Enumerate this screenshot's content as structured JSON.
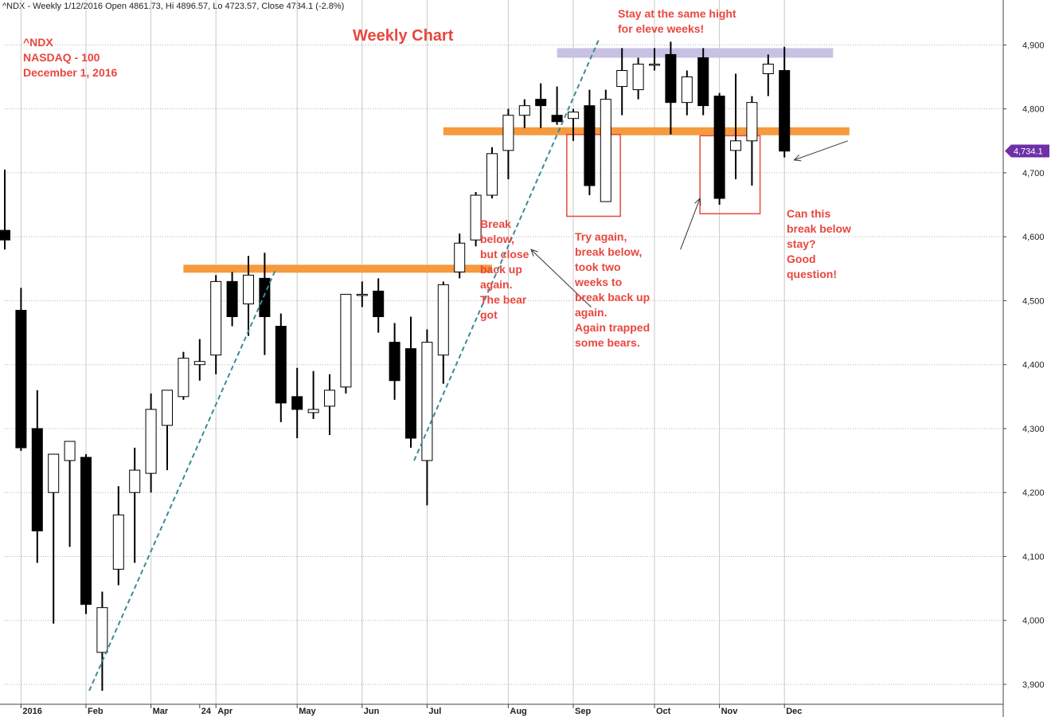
{
  "header": "^NDX - Weekly 1/12/2016 Open 4861.73, Hi 4896.57, Lo 4723.57, Close 4734.1 (-2.8%)",
  "colors": {
    "accent_red": "#e8473f",
    "support_orange": "#f59a3e",
    "resistance_lavender": "#c9c1e4",
    "trend_teal": "#3d8a94",
    "price_badge": "#6f2fa7",
    "bull": "#ffffff",
    "bear": "#000000"
  },
  "chart_data": {
    "type": "candlestick",
    "title": "Weekly Chart",
    "symbol_block": [
      "^NDX",
      "NASDAQ - 100",
      "December 1, 2016"
    ],
    "ylim": [
      3880,
      4960
    ],
    "yticks": [
      3900,
      4000,
      4100,
      4200,
      4300,
      4400,
      4500,
      4600,
      4700,
      4800,
      4900
    ],
    "ytick_labels": [
      "3,900",
      "4,000",
      "4,100",
      "4,200",
      "4,300",
      "4,400",
      "4,500",
      "4,600",
      "4,700",
      "4,800",
      "4,900"
    ],
    "last_price_label": "4,734.1",
    "last_price": 4734.1,
    "xlim": [
      0,
      64
    ],
    "months": [
      {
        "label": "2016",
        "x": 1
      },
      {
        "label": "Feb",
        "x": 5
      },
      {
        "label": "Mar",
        "x": 9
      },
      {
        "label": "24",
        "x": 12
      },
      {
        "label": "Apr",
        "x": 13
      },
      {
        "label": "May",
        "x": 18
      },
      {
        "label": "Jun",
        "x": 22
      },
      {
        "label": "Jul",
        "x": 26
      },
      {
        "label": "Aug",
        "x": 31
      },
      {
        "label": "Sep",
        "x": 35
      },
      {
        "label": "Oct",
        "x": 40
      },
      {
        "label": "Nov",
        "x": 44
      },
      {
        "label": "Dec",
        "x": 48
      }
    ],
    "candles": [
      {
        "x": 0,
        "o": 4610,
        "h": 4705,
        "l": 4580,
        "c": 4595
      },
      {
        "x": 1,
        "o": 4485,
        "h": 4520,
        "l": 4265,
        "c": 4270
      },
      {
        "x": 2,
        "o": 4300,
        "h": 4360,
        "l": 4090,
        "c": 4140
      },
      {
        "x": 3,
        "o": 4200,
        "h": 4260,
        "l": 3995,
        "c": 4260
      },
      {
        "x": 4,
        "o": 4250,
        "h": 4280,
        "l": 4115,
        "c": 4280
      },
      {
        "x": 5,
        "o": 4255,
        "h": 4260,
        "l": 4010,
        "c": 4025
      },
      {
        "x": 6,
        "o": 3950,
        "h": 4045,
        "l": 3890,
        "c": 4020
      },
      {
        "x": 7,
        "o": 4080,
        "h": 4210,
        "l": 4055,
        "c": 4165
      },
      {
        "x": 8,
        "o": 4200,
        "h": 4270,
        "l": 4090,
        "c": 4235
      },
      {
        "x": 9,
        "o": 4230,
        "h": 4355,
        "l": 4200,
        "c": 4330
      },
      {
        "x": 10,
        "o": 4305,
        "h": 4360,
        "l": 4235,
        "c": 4360
      },
      {
        "x": 11,
        "o": 4350,
        "h": 4420,
        "l": 4345,
        "c": 4410
      },
      {
        "x": 12,
        "o": 4400,
        "h": 4440,
        "l": 4375,
        "c": 4405
      },
      {
        "x": 13,
        "o": 4415,
        "h": 4540,
        "l": 4385,
        "c": 4530
      },
      {
        "x": 14,
        "o": 4530,
        "h": 4545,
        "l": 4460,
        "c": 4475
      },
      {
        "x": 15,
        "o": 4495,
        "h": 4570,
        "l": 4445,
        "c": 4540
      },
      {
        "x": 16,
        "o": 4535,
        "h": 4575,
        "l": 4415,
        "c": 4475
      },
      {
        "x": 17,
        "o": 4460,
        "h": 4480,
        "l": 4310,
        "c": 4340
      },
      {
        "x": 18,
        "o": 4350,
        "h": 4395,
        "l": 4285,
        "c": 4330
      },
      {
        "x": 19,
        "o": 4325,
        "h": 4390,
        "l": 4315,
        "c": 4330
      },
      {
        "x": 20,
        "o": 4335,
        "h": 4385,
        "l": 4290,
        "c": 4360
      },
      {
        "x": 21,
        "o": 4365,
        "h": 4510,
        "l": 4355,
        "c": 4510
      },
      {
        "x": 22,
        "o": 4510,
        "h": 4530,
        "l": 4490,
        "c": 4510
      },
      {
        "x": 23,
        "o": 4515,
        "h": 4535,
        "l": 4450,
        "c": 4475
      },
      {
        "x": 24,
        "o": 4435,
        "h": 4465,
        "l": 4345,
        "c": 4375
      },
      {
        "x": 25,
        "o": 4425,
        "h": 4475,
        "l": 4270,
        "c": 4285
      },
      {
        "x": 26,
        "o": 4250,
        "h": 4455,
        "l": 4180,
        "c": 4435
      },
      {
        "x": 27,
        "o": 4415,
        "h": 4530,
        "l": 4370,
        "c": 4525
      },
      {
        "x": 28,
        "o": 4545,
        "h": 4605,
        "l": 4535,
        "c": 4590
      },
      {
        "x": 29,
        "o": 4595,
        "h": 4670,
        "l": 4585,
        "c": 4665
      },
      {
        "x": 30,
        "o": 4665,
        "h": 4740,
        "l": 4660,
        "c": 4730
      },
      {
        "x": 31,
        "o": 4735,
        "h": 4800,
        "l": 4690,
        "c": 4790
      },
      {
        "x": 32,
        "o": 4790,
        "h": 4815,
        "l": 4770,
        "c": 4805
      },
      {
        "x": 33,
        "o": 4815,
        "h": 4840,
        "l": 4770,
        "c": 4805
      },
      {
        "x": 34,
        "o": 4790,
        "h": 4835,
        "l": 4775,
        "c": 4780
      },
      {
        "x": 35,
        "o": 4785,
        "h": 4800,
        "l": 4750,
        "c": 4795
      },
      {
        "x": 36,
        "o": 4805,
        "h": 4830,
        "l": 4665,
        "c": 4680
      },
      {
        "x": 37,
        "o": 4655,
        "h": 4830,
        "l": 4655,
        "c": 4815
      },
      {
        "x": 38,
        "o": 4835,
        "h": 4895,
        "l": 4790,
        "c": 4860
      },
      {
        "x": 39,
        "o": 4830,
        "h": 4880,
        "l": 4815,
        "c": 4870
      },
      {
        "x": 40,
        "o": 4870,
        "h": 4895,
        "l": 4860,
        "c": 4870
      },
      {
        "x": 41,
        "o": 4885,
        "h": 4905,
        "l": 4760,
        "c": 4810
      },
      {
        "x": 42,
        "o": 4810,
        "h": 4860,
        "l": 4790,
        "c": 4850
      },
      {
        "x": 43,
        "o": 4880,
        "h": 4895,
        "l": 4790,
        "c": 4805
      },
      {
        "x": 44,
        "o": 4820,
        "h": 4825,
        "l": 4650,
        "c": 4660
      },
      {
        "x": 45,
        "o": 4735,
        "h": 4855,
        "l": 4690,
        "c": 4750
      },
      {
        "x": 46,
        "o": 4750,
        "h": 4820,
        "l": 4680,
        "c": 4810
      },
      {
        "x": 47,
        "o": 4855,
        "h": 4885,
        "l": 4820,
        "c": 4870
      },
      {
        "x": 48,
        "o": 4860,
        "h": 4897,
        "l": 4724,
        "c": 4734
      }
    ],
    "support_lines": [
      {
        "name": "support-1",
        "y": 4550,
        "x0": 11,
        "x1": 30
      },
      {
        "name": "support-2",
        "y": 4765,
        "x0": 27,
        "x1": 52
      }
    ],
    "resistance_band": {
      "y0": 4880,
      "y1": 4895,
      "x0": 34,
      "x1": 51
    },
    "trend_lines": [
      {
        "x0": 5.2,
        "y0": 3890,
        "x1": 16.7,
        "y1": 4550
      },
      {
        "x0": 25.2,
        "y0": 4250,
        "x1": 36.6,
        "y1": 4910
      }
    ],
    "boxes": [
      {
        "x0": 34.6,
        "x1": 37.9,
        "y0": 4632,
        "y1": 4760
      },
      {
        "x0": 42.8,
        "x1": 46.5,
        "y0": 4636,
        "y1": 4758
      }
    ],
    "annotations": [
      {
        "name": "ann-stay",
        "lines": [
          "Stay at the same hight",
          "for eleve weeks!"
        ]
      },
      {
        "name": "ann-break1",
        "lines": [
          "Break",
          "below,",
          "but close",
          "back up",
          "again.",
          "The bear",
          "got"
        ]
      },
      {
        "name": "ann-try",
        "lines": [
          "Try again,",
          "break below,",
          "took two",
          "weeks to",
          "break back up",
          "again.",
          "Again trapped",
          "some bears."
        ]
      },
      {
        "name": "ann-can",
        "lines": [
          "Can this",
          "break below",
          "stay?",
          "Good",
          "question!"
        ]
      }
    ],
    "arrows": [
      {
        "name": "arrow-break1",
        "from": [
          36.1,
          4490
        ],
        "to": [
          32.4,
          4580
        ]
      },
      {
        "name": "arrow-try",
        "from": [
          41.6,
          4580
        ],
        "to": [
          42.8,
          4660
        ]
      },
      {
        "name": "arrow-can",
        "from": [
          51.9,
          4750
        ],
        "to": [
          48.6,
          4720
        ]
      }
    ]
  }
}
